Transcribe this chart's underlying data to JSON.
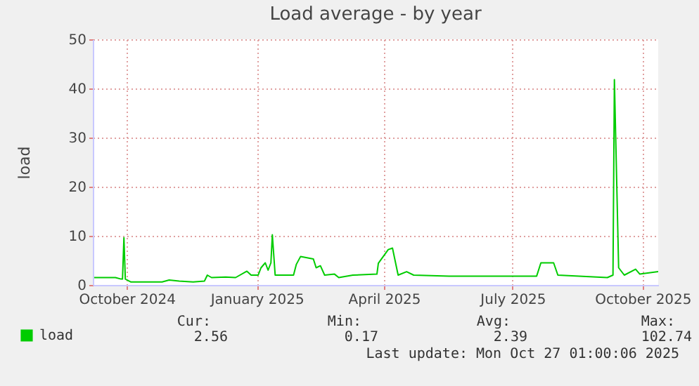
{
  "chart_data": {
    "type": "line",
    "title": "Load average - by year",
    "ylabel": "load",
    "x": [
      "2024-09-23",
      "2024-10-08",
      "2024-10-12",
      "2024-10-13",
      "2024-10-14",
      "2024-10-15",
      "2024-10-19",
      "2024-11-10",
      "2024-11-15",
      "2024-11-22",
      "2024-12-02",
      "2024-12-10",
      "2024-12-12",
      "2024-12-15",
      "2024-12-25",
      "2025-01-01",
      "2025-01-09",
      "2025-01-12",
      "2025-01-17",
      "2025-01-19",
      "2025-01-22",
      "2025-01-24",
      "2025-01-26",
      "2025-01-27",
      "2025-01-29",
      "2025-02-11",
      "2025-02-13",
      "2025-02-16",
      "2025-02-25",
      "2025-02-27",
      "2025-03-02",
      "2025-03-05",
      "2025-03-12",
      "2025-03-15",
      "2025-03-25",
      "2025-04-11",
      "2025-04-12",
      "2025-04-19",
      "2025-04-22",
      "2025-04-26",
      "2025-05-02",
      "2025-05-07",
      "2025-06-01",
      "2025-07-01",
      "2025-08-02",
      "2025-08-05",
      "2025-08-14",
      "2025-08-17",
      "2025-09-21",
      "2025-09-25",
      "2025-09-26",
      "2025-09-29",
      "2025-10-03",
      "2025-10-11",
      "2025-10-14",
      "2025-10-27"
    ],
    "series": [
      {
        "name": "load",
        "color": "#00cc00",
        "values": [
          1.5,
          1.5,
          1.2,
          1.2,
          9.6,
          1.2,
          0.6,
          0.6,
          1.0,
          0.8,
          0.6,
          0.8,
          2.0,
          1.5,
          1.6,
          1.5,
          2.8,
          2.0,
          2.0,
          3.5,
          4.5,
          3.0,
          4.5,
          10.2,
          2.0,
          2.0,
          4.2,
          5.8,
          5.3,
          3.5,
          3.9,
          2.0,
          2.2,
          1.5,
          2.0,
          2.2,
          4.4,
          7.2,
          7.5,
          2.0,
          2.7,
          2.0,
          1.8,
          1.8,
          1.8,
          4.5,
          4.5,
          2.0,
          1.5,
          2.0,
          41.8,
          3.5,
          2.0,
          3.2,
          2.2,
          2.7
        ]
      }
    ],
    "xlim": [
      "2024-09-22",
      "2025-10-27"
    ],
    "xticks": [
      {
        "value": "2024-10-16",
        "label": "October 2024"
      },
      {
        "value": "2025-01-16",
        "label": "January 2025"
      },
      {
        "value": "2025-04-16",
        "label": "April 2025"
      },
      {
        "value": "2025-07-16",
        "label": "July 2025"
      },
      {
        "value": "2025-10-16",
        "label": "October 2025"
      }
    ],
    "ylim": [
      0,
      50
    ],
    "yticks": [
      0,
      10,
      20,
      30,
      40,
      50
    ],
    "grid": true,
    "legend": "bottom left",
    "annotations": [
      "Cur:",
      "Min:",
      "Avg:",
      "Max:",
      "2.56",
      "0.17",
      "2.39",
      "102.74",
      "Last update: Mon Oct 27 01:00:06 2025"
    ]
  }
}
